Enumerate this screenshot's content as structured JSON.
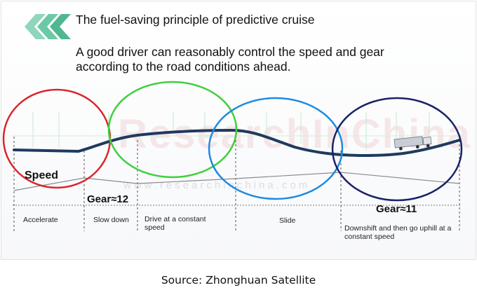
{
  "header": {
    "title": "The fuel-saving principle of predictive cruise",
    "subtitle": "A good driver can reasonably control the speed and gear according to the road conditions ahead."
  },
  "diagram": {
    "speed_label": "Speed",
    "gear_labels": [
      "Gear≈12",
      "Gear≈11"
    ],
    "phases": [
      "Accelerate",
      "Slow down",
      "Drive at a constant speed",
      "Slide",
      "Downshift and then go uphill at a constant speed"
    ],
    "watermark": "ResearchInChina",
    "watermark_url": "www.researchinchina.com"
  },
  "colors": {
    "chevron": "#5bbf9c",
    "road": "#1f3a5f",
    "circle_red": "#d9262c",
    "circle_green": "#3fcf3f",
    "circle_blue": "#1e8be0",
    "circle_navy": "#1a2366",
    "grid_green": "#c8e8d0"
  },
  "footer": {
    "source": "Source: Zhonghuan Satellite"
  }
}
